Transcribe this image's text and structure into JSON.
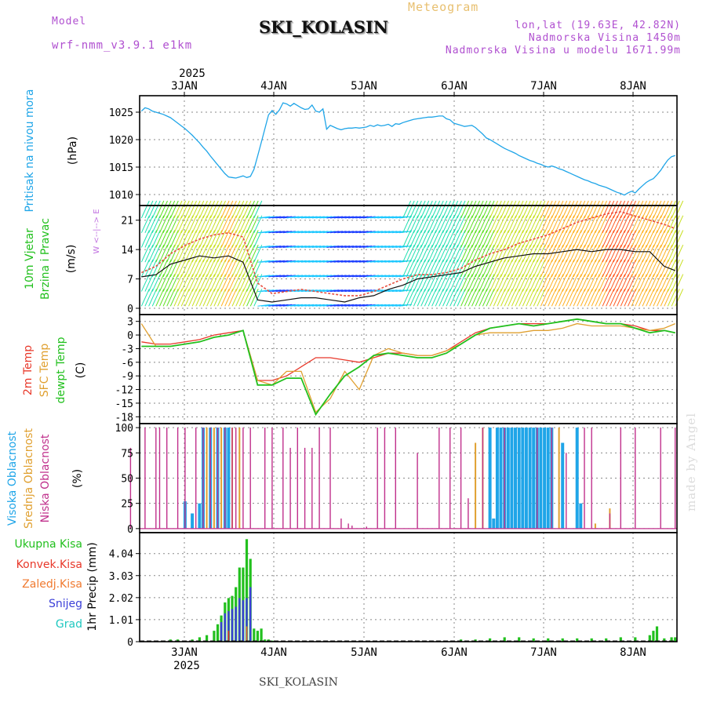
{
  "header": {
    "model_label": "Model",
    "model_name": "wrf-nmm_v3.9.1 e1km",
    "site": "SKI_KOLASIN",
    "product": "Meteogram",
    "coords": "lon,lat (19.63E, 42.82N)",
    "elevation": "Nadmorska Visina 1450m",
    "model_elevation": "Nadmorska Visina u modelu 1671.99m"
  },
  "footer": {
    "site": "SKI_KOLASIN"
  },
  "signature": "made by Angel",
  "colors": {
    "pressure": "#1fa5e8",
    "temp2m": "#e8382a",
    "sfc_temp": "#e0a030",
    "dewpoint": "#22c01e",
    "high_cloud": "#1fa5e8",
    "mid_cloud": "#e0a030",
    "low_cloud": "#c0308c",
    "precip_total": "#22c01e",
    "precip_conv": "#e8382a",
    "precip_frozen": "#f07a30",
    "precip_snow": "#3b3fd8",
    "precip_grad": "#1fc8c0",
    "wind_label": "#22c01e",
    "compass": "#c070e0"
  },
  "chart_data": [
    {
      "id": "pressure",
      "type": "line",
      "ylabel": "Pritisak na nivou mora",
      "unit": "(hPa)",
      "top_axis": {
        "year": "2025",
        "ticks": [
          "3JAN",
          "4JAN",
          "5JAN",
          "6JAN",
          "7JAN",
          "8JAN"
        ]
      },
      "yticks": [
        1010,
        1015,
        1020,
        1025
      ],
      "ylim": [
        1008,
        1028
      ],
      "x": [
        0,
        1,
        2,
        3,
        4,
        5,
        6,
        7,
        8,
        9,
        10,
        11,
        12,
        13,
        14,
        15,
        16,
        17,
        18,
        19,
        20,
        21,
        22,
        23,
        24,
        25,
        26,
        27,
        28,
        29,
        30,
        31,
        32,
        33,
        34,
        35,
        36,
        37,
        38,
        39,
        40,
        41,
        42,
        43,
        44,
        45,
        46,
        47,
        48,
        49,
        50,
        51,
        52,
        53,
        54,
        55,
        56,
        57,
        58,
        59,
        60,
        61,
        62,
        63,
        64,
        65,
        66,
        67,
        68,
        69,
        70,
        71,
        72,
        73,
        74,
        75,
        76,
        77,
        78,
        79,
        80,
        81,
        82,
        83,
        84,
        85,
        86,
        87,
        88,
        89,
        90,
        91,
        92,
        93,
        94,
        95,
        96,
        97,
        98,
        99,
        100,
        101,
        102,
        103,
        104,
        105,
        106,
        107,
        108,
        109,
        110,
        111,
        112,
        113,
        114,
        115,
        116,
        117,
        118,
        119,
        120,
        121,
        122,
        123,
        124,
        125,
        126,
        127,
        128,
        129,
        130,
        131,
        132,
        133,
        134,
        135,
        136,
        137,
        138,
        139,
        140,
        141,
        142,
        143,
        144,
        145,
        146,
        147
      ],
      "values": [
        1025.2,
        1025.8,
        1025.6,
        1025.2,
        1025.0,
        1024.8,
        1024.6,
        1024.3,
        1024.0,
        1023.5,
        1023.0,
        1022.5,
        1022.0,
        1021.4,
        1020.8,
        1020.1,
        1019.4,
        1018.6,
        1017.9,
        1017.0,
        1016.2,
        1015.4,
        1014.6,
        1013.8,
        1013.2,
        1013.1,
        1013.0,
        1013.2,
        1013.4,
        1013.1,
        1013.3,
        1014.6,
        1017.0,
        1019.5,
        1022.0,
        1024.5,
        1025.3,
        1024.6,
        1025.4,
        1026.7,
        1026.5,
        1026.1,
        1026.6,
        1026.2,
        1025.8,
        1025.5,
        1025.6,
        1026.3,
        1025.2,
        1025.0,
        1025.6,
        1021.9,
        1022.6,
        1022.3,
        1022.0,
        1021.8,
        1022.0,
        1022.1,
        1022.1,
        1022.2,
        1022.1,
        1022.2,
        1022.3,
        1022.6,
        1022.4,
        1022.7,
        1022.5,
        1022.6,
        1022.8,
        1022.4,
        1022.9,
        1022.8,
        1023.1,
        1023.3,
        1023.5,
        1023.7,
        1023.8,
        1023.9,
        1024.0,
        1024.1,
        1024.1,
        1024.2,
        1024.3,
        1024.3,
        1023.8,
        1023.6,
        1023.0,
        1022.8,
        1022.6,
        1022.4,
        1022.5,
        1022.6,
        1022.2,
        1021.6,
        1021.0,
        1020.3,
        1020.0,
        1019.6,
        1019.2,
        1018.8,
        1018.4,
        1018.1,
        1017.8,
        1017.5,
        1017.1,
        1016.8,
        1016.5,
        1016.2,
        1016.0,
        1015.7,
        1015.5,
        1015.2,
        1015.0,
        1015.2,
        1015.0,
        1014.7,
        1014.5,
        1014.2,
        1013.9,
        1013.6,
        1013.3,
        1013.0,
        1012.7,
        1012.5,
        1012.2,
        1012.0,
        1011.7,
        1011.5,
        1011.3,
        1011.0,
        1010.7,
        1010.4,
        1010.2,
        1009.9,
        1010.3,
        1010.6,
        1010.3,
        1011.0,
        1011.6,
        1012.2,
        1012.6,
        1012.9,
        1013.6,
        1014.4,
        1015.4,
        1016.3,
        1016.9,
        1017.1
      ]
    },
    {
      "id": "wind",
      "type": "line",
      "ylabel_lines": [
        "10m Vjetar",
        "Brzina i Pravac"
      ],
      "unit": "(m/s)",
      "compass": [
        "N",
        "^",
        "|",
        "W <--|--> E",
        "|",
        "v",
        "S"
      ],
      "yticks": [
        0,
        7,
        14,
        21
      ],
      "ylim": [
        -1.5,
        24.5
      ],
      "x": [
        0,
        4,
        8,
        12,
        16,
        20,
        24,
        28,
        32,
        36,
        40,
        44,
        48,
        52,
        56,
        60,
        64,
        68,
        72,
        76,
        80,
        84,
        88,
        92,
        96,
        100,
        104,
        108,
        112,
        116,
        120,
        124,
        128,
        132,
        136,
        140,
        144,
        147
      ],
      "speed": [
        7.5,
        8.0,
        10.5,
        11.5,
        12.5,
        12.0,
        12.5,
        11.0,
        2.0,
        1.5,
        2.0,
        2.5,
        2.5,
        2.0,
        1.5,
        2.5,
        3.0,
        4.5,
        5.5,
        7.0,
        7.5,
        8.0,
        8.5,
        10.0,
        11.0,
        12.0,
        12.5,
        13.0,
        13.0,
        13.5,
        14.0,
        13.5,
        14.0,
        14.0,
        13.5,
        13.5,
        10.0,
        9.0
      ],
      "gust": [
        8.5,
        10.0,
        13.0,
        15.0,
        16.5,
        17.5,
        18.0,
        17.0,
        6.0,
        3.5,
        4.0,
        4.5,
        4.0,
        3.5,
        3.0,
        3.0,
        4.0,
        5.5,
        7.0,
        8.0,
        8.0,
        8.5,
        9.5,
        11.5,
        13.0,
        14.0,
        15.5,
        16.5,
        17.5,
        19.0,
        20.5,
        21.5,
        22.5,
        23.0,
        22.0,
        21.0,
        20.0,
        19.0
      ]
    },
    {
      "id": "temperature",
      "type": "line",
      "ylabel_lines": [
        "2m Temp",
        "SFC Temp",
        "dewpt Temp"
      ],
      "unit": "(C)",
      "yticks": [
        3,
        0,
        -3,
        -6,
        -9,
        -12,
        -15,
        -18
      ],
      "ylim": [
        -19.5,
        4.5
      ],
      "x": [
        0,
        4,
        8,
        12,
        16,
        20,
        24,
        28,
        32,
        36,
        40,
        44,
        48,
        52,
        56,
        60,
        64,
        68,
        72,
        76,
        80,
        84,
        88,
        92,
        96,
        100,
        104,
        108,
        112,
        116,
        120,
        124,
        128,
        132,
        136,
        140,
        144,
        147
      ],
      "series": [
        {
          "name": "2m Temp",
          "values": [
            -1.5,
            -2.0,
            -2.0,
            -1.5,
            -1.0,
            0.0,
            0.5,
            1.0,
            -10.0,
            -10.0,
            -9.0,
            -7.0,
            -5.0,
            -5.0,
            -5.5,
            -6.0,
            -5.0,
            -4.0,
            -4.0,
            -4.5,
            -4.5,
            -3.5,
            -1.5,
            0.5,
            1.5,
            2.0,
            2.5,
            2.5,
            2.5,
            3.0,
            3.5,
            3.0,
            2.5,
            2.5,
            2.0,
            1.0,
            1.0,
            0.5
          ]
        },
        {
          "name": "SFC Temp",
          "values": [
            2.5,
            -2.5,
            -2.5,
            -2.0,
            -1.5,
            -0.5,
            0.0,
            1.0,
            -10.0,
            -11.0,
            -8.0,
            -8.0,
            -17.0,
            -14.0,
            -8.0,
            -12.0,
            -4.5,
            -3.0,
            -4.0,
            -4.5,
            -4.5,
            -3.5,
            -2.0,
            0.0,
            0.5,
            0.5,
            0.5,
            1.0,
            1.0,
            1.5,
            2.5,
            2.0,
            2.0,
            2.0,
            1.5,
            1.0,
            1.5,
            2.5
          ]
        },
        {
          "name": "dewpt Temp",
          "values": [
            -2.5,
            -2.5,
            -2.5,
            -2.0,
            -1.5,
            -0.5,
            0.0,
            1.0,
            -11.0,
            -11.0,
            -9.5,
            -9.5,
            -17.5,
            -13.0,
            -9.0,
            -7.0,
            -4.5,
            -4.0,
            -4.5,
            -5.0,
            -5.0,
            -4.0,
            -2.0,
            0.0,
            1.5,
            2.0,
            2.5,
            2.0,
            2.5,
            3.0,
            3.5,
            3.0,
            2.5,
            2.5,
            1.5,
            0.5,
            1.0,
            0.5
          ]
        }
      ]
    },
    {
      "id": "cloud",
      "type": "bar",
      "ylabel_lines": [
        "Visoka Oblacnost",
        "Srednja Oblacnost",
        "Niska Oblacnost"
      ],
      "unit": "(%)",
      "yticks": [
        0,
        25,
        50,
        75,
        100
      ],
      "ylim": [
        -4,
        104
      ],
      "series": [
        {
          "name": "Visoka Oblacnost",
          "x": [
            12,
            14,
            16,
            17,
            19,
            21,
            23,
            24,
            96,
            97,
            98,
            99,
            100,
            101,
            102,
            103,
            104,
            105,
            106,
            107,
            108,
            109,
            110,
            111,
            112,
            113,
            116,
            120,
            121,
            126
          ],
          "values": [
            27,
            15,
            25,
            100,
            100,
            100,
            100,
            100,
            100,
            10,
            100,
            100,
            100,
            100,
            100,
            100,
            100,
            100,
            100,
            100,
            100,
            100,
            100,
            100,
            100,
            100,
            85,
            100,
            25,
            0
          ]
        },
        {
          "name": "Srednja Oblacnost",
          "x": [
            18,
            20,
            22,
            25,
            27,
            92,
            94,
            115,
            125,
            129
          ],
          "values": [
            100,
            100,
            100,
            100,
            100,
            85,
            100,
            100,
            5,
            20
          ]
        },
        {
          "name": "Niska Oblacnost",
          "x": [
            -3,
            1,
            4,
            5,
            7,
            10,
            12,
            15,
            17,
            19,
            21,
            23,
            25,
            26,
            28,
            30,
            34,
            36,
            39,
            41,
            43,
            45,
            47,
            49,
            52,
            55,
            57,
            58,
            62,
            65,
            67,
            70,
            76,
            82,
            85,
            88,
            90,
            94,
            100,
            109,
            113,
            117,
            122,
            124,
            129,
            132,
            136,
            143,
            147
          ],
          "values": [
            80,
            100,
            100,
            100,
            100,
            100,
            100,
            100,
            100,
            100,
            100,
            100,
            100,
            100,
            100,
            100,
            100,
            100,
            100,
            80,
            100,
            80,
            80,
            100,
            100,
            10,
            5,
            3,
            2,
            100,
            100,
            100,
            75,
            100,
            100,
            100,
            30,
            100,
            100,
            100,
            100,
            75,
            100,
            100,
            15,
            100,
            100,
            100,
            100
          ]
        }
      ]
    },
    {
      "id": "precip",
      "type": "bar",
      "ylabel": "1hr Precip",
      "unit": "(mm)",
      "legend": [
        "Ukupna Kisa",
        "Konvek.Kisa",
        "Zaledj.Kisa",
        "Snijeg",
        "Grad"
      ],
      "yticks": [
        "0",
        "1.01",
        "2.02",
        "3.03",
        "4.04"
      ],
      "ylim": [
        0,
        5.0
      ],
      "bottom_axis": {
        "year": "2025",
        "ticks": [
          "3JAN",
          "4JAN",
          "5JAN",
          "6JAN",
          "7JAN",
          "8JAN"
        ]
      },
      "series": [
        {
          "name": "Ukupna Kisa",
          "x": [
            8,
            10,
            14,
            16,
            18,
            20,
            21,
            22,
            23,
            24,
            25,
            26,
            27,
            28,
            29,
            30,
            31,
            32,
            33,
            34,
            35,
            36,
            88,
            92,
            96,
            100,
            104,
            108,
            112,
            116,
            120,
            124,
            128,
            132,
            136,
            140,
            141,
            142,
            144,
            146,
            147
          ],
          "values": [
            0.1,
            0.1,
            0.1,
            0.2,
            0.3,
            0.5,
            0.8,
            1.2,
            1.8,
            2.0,
            2.1,
            2.5,
            3.4,
            3.4,
            4.7,
            3.8,
            0.6,
            0.5,
            0.6,
            0.1,
            0.1,
            0.05,
            0.1,
            0.1,
            0.15,
            0.2,
            0.2,
            0.15,
            0.15,
            0.15,
            0.15,
            0.15,
            0.15,
            0.2,
            0.2,
            0.3,
            0.5,
            0.7,
            0.15,
            0.2,
            0.2
          ]
        },
        {
          "name": "Snijeg",
          "x": [
            22,
            23,
            24,
            25,
            26,
            27,
            28,
            29,
            30
          ],
          "values": [
            0.9,
            1.3,
            1.4,
            1.5,
            1.6,
            2.0,
            1.9,
            2.0,
            2.5
          ]
        },
        {
          "name": "Zaledj.Kisa",
          "x": [
            29
          ],
          "values": [
            0.7
          ]
        },
        {
          "name": "Konvek.Kisa",
          "x": [
            24
          ],
          "values": [
            0.5
          ]
        }
      ]
    }
  ]
}
